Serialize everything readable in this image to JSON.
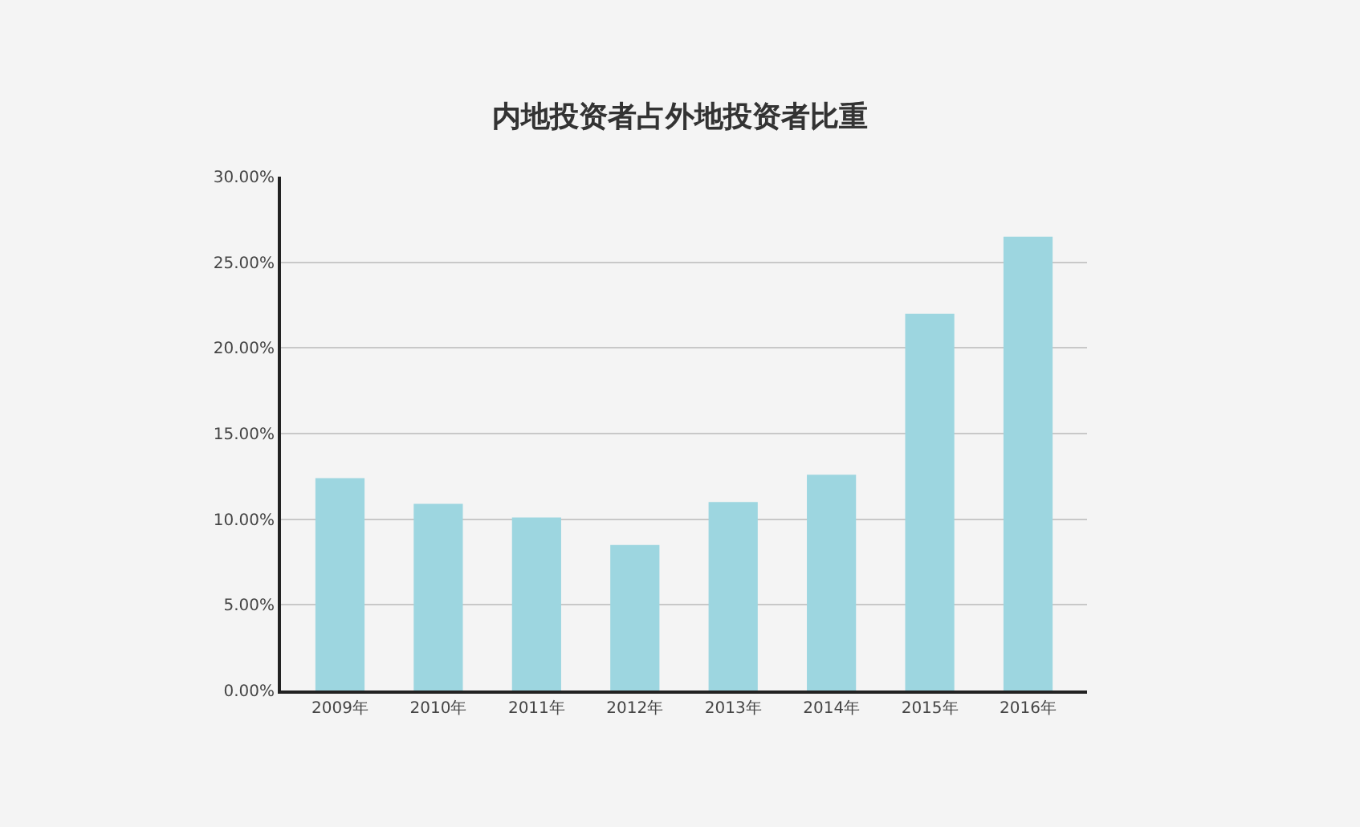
{
  "chart_data": {
    "type": "bar",
    "title": "内地投资者占外地投资者比重",
    "categories": [
      "2009年",
      "2010年",
      "2011年",
      "2012年",
      "2013年",
      "2014年",
      "2015年",
      "2016年"
    ],
    "values": [
      12.4,
      10.9,
      10.1,
      8.5,
      11.0,
      12.6,
      22.0,
      26.5
    ],
    "color": "#9dd6e0",
    "ylim": [
      0,
      30
    ],
    "yticks": [
      {
        "value": 0,
        "label": "0.00%"
      },
      {
        "value": 5,
        "label": "5.00%"
      },
      {
        "value": 10,
        "label": "10.00%"
      },
      {
        "value": 15,
        "label": "15.00%"
      },
      {
        "value": 20,
        "label": "20.00%"
      },
      {
        "value": 25,
        "label": "25.00%"
      },
      {
        "value": 30,
        "label": "30.00%"
      }
    ],
    "grid": "y"
  }
}
